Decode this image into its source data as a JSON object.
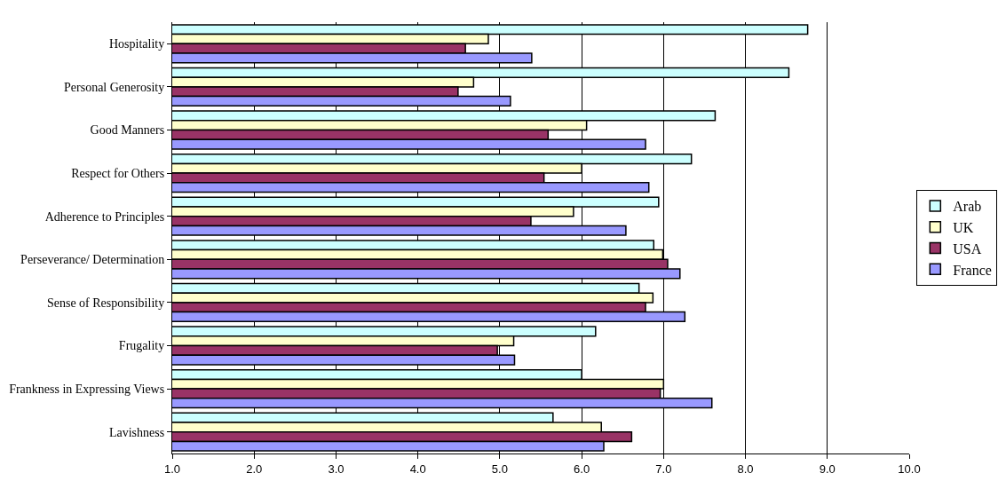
{
  "chart_data": {
    "type": "bar",
    "orientation": "horizontal",
    "categories": [
      "Hospitality",
      "Personal Generosity",
      "Good Manners",
      "Respect for Others",
      "Adherence to Principles",
      "Perseverance/ Determination",
      "Sense of Responsibility",
      "Frugality",
      "Frankness in Expressing Views",
      "Lavishness"
    ],
    "series": [
      {
        "name": "Arab",
        "color": "#ccffff",
        "values": [
          8.76,
          8.53,
          7.63,
          7.34,
          6.94,
          6.88,
          6.7,
          6.17,
          6.0,
          5.65
        ]
      },
      {
        "name": "UK",
        "color": "#ffffcc",
        "values": [
          4.86,
          4.68,
          6.06,
          6.0,
          5.9,
          6.99,
          6.87,
          5.17,
          7.0,
          6.24
        ]
      },
      {
        "name": "USA",
        "color": "#993366",
        "values": [
          4.58,
          4.49,
          5.59,
          5.54,
          5.38,
          7.05,
          6.78,
          4.97,
          6.96,
          6.61
        ]
      },
      {
        "name": "France",
        "color": "#9999ff",
        "values": [
          5.39,
          5.13,
          6.78,
          6.82,
          6.54,
          7.2,
          7.26,
          5.18,
          7.59,
          6.27
        ]
      }
    ],
    "xlim": [
      1,
      10
    ],
    "xticks": [
      {
        "value": 1,
        "label": "1.0"
      },
      {
        "value": 2,
        "label": "2.0"
      },
      {
        "value": 3,
        "label": "3.0"
      },
      {
        "value": 4,
        "label": "4.0"
      },
      {
        "value": 5,
        "label": "5.0"
      },
      {
        "value": 6,
        "label": "6.0"
      },
      {
        "value": 7,
        "label": "7.0"
      },
      {
        "value": 8,
        "label": "8.0"
      },
      {
        "value": 9,
        "label": "9.0"
      },
      {
        "value": 10,
        "label": "10.0"
      }
    ],
    "grid": "x",
    "legend": "right"
  }
}
